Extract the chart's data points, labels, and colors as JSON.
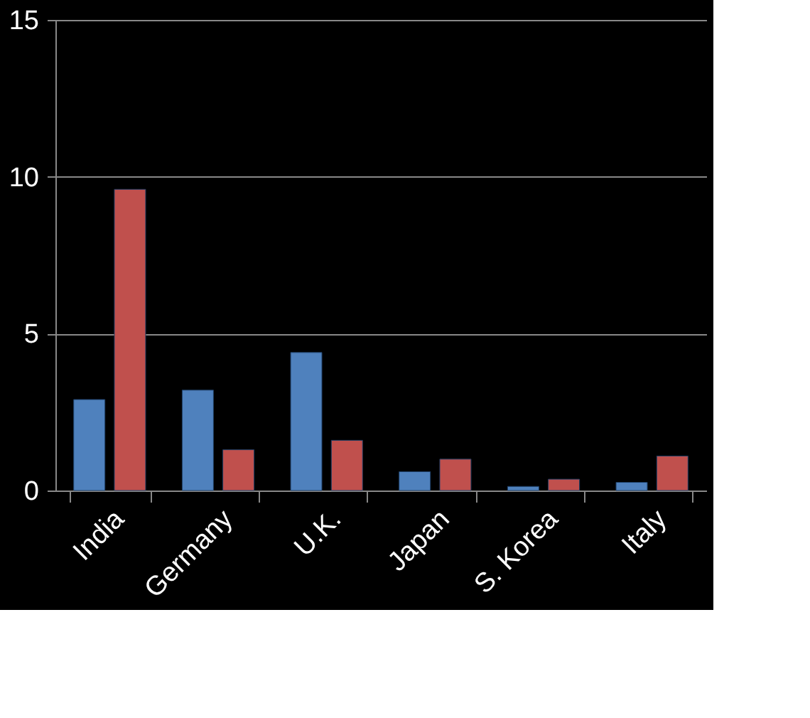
{
  "chart_data": {
    "type": "bar",
    "categories": [
      "India",
      "Germany",
      "U.K.",
      "Japan",
      "S. Korea",
      "Italy"
    ],
    "series": [
      {
        "color": "#4f81bd",
        "values": [
          2.9,
          3.2,
          4.4,
          0.6,
          0.13,
          0.26
        ]
      },
      {
        "color": "#c0504d",
        "values": [
          9.6,
          1.3,
          1.6,
          1.0,
          0.36,
          1.1
        ]
      }
    ],
    "ylim": [
      0,
      15
    ],
    "yticks": [
      0,
      5,
      10,
      15
    ],
    "grid": "y",
    "legend": false
  }
}
